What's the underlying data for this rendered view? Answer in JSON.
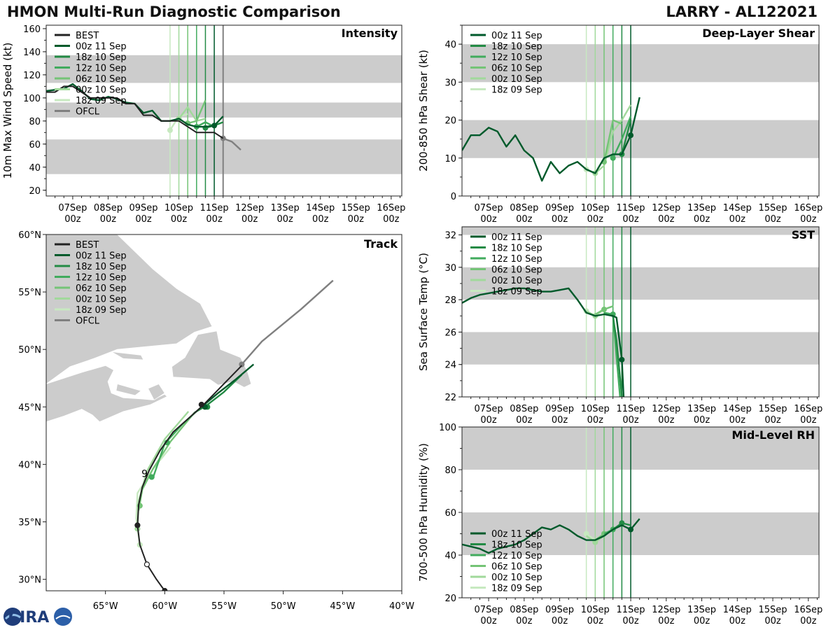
{
  "header": {
    "left_title": "HMON Multi-Run Diagnostic Comparison",
    "right_title": "LARRY - AL122021"
  },
  "logo": {
    "label": "CIRA"
  },
  "colors": {
    "BEST": "#222222",
    "OFCL": "#808080",
    "00z 11 Sep": "#005a2b",
    "18z 10 Sep": "#238b45",
    "12z 10 Sep": "#41ab5d",
    "06z 10 Sep": "#74c476",
    "00z 10 Sep": "#a1d99b",
    "18z 09 Sep": "#c7e9c0",
    "band": "#cccccc"
  },
  "time_axis": {
    "ticks": [
      {
        "t": 0,
        "label": "07Sep",
        "sub": "00z"
      },
      {
        "t": 1,
        "label": "08Sep",
        "sub": "00z"
      },
      {
        "t": 2,
        "label": "09Sep",
        "sub": "00z"
      },
      {
        "t": 3,
        "label": "10Sep",
        "sub": "00z"
      },
      {
        "t": 4,
        "label": "11Sep",
        "sub": "00z"
      },
      {
        "t": 5,
        "label": "12Sep",
        "sub": "00z"
      },
      {
        "t": 6,
        "label": "13Sep",
        "sub": "00z"
      },
      {
        "t": 7,
        "label": "14Sep",
        "sub": "00z"
      },
      {
        "t": 8,
        "label": "15Sep",
        "sub": "00z"
      },
      {
        "t": 9,
        "label": "16Sep",
        "sub": "00z"
      }
    ],
    "range": [
      -0.75,
      9.3
    ],
    "init_times": [
      {
        "name": "18z 09 Sep",
        "t": 2.75
      },
      {
        "name": "00z 10 Sep",
        "t": 3.0
      },
      {
        "name": "06z 10 Sep",
        "t": 3.25
      },
      {
        "name": "12z 10 Sep",
        "t": 3.5
      },
      {
        "name": "18z 10 Sep",
        "t": 3.75
      },
      {
        "name": "00z 11 Sep",
        "t": 4.0
      }
    ],
    "ofcl_time": 4.25
  },
  "chart_data": [
    {
      "id": "intensity",
      "type": "line",
      "title": "Intensity",
      "ylabel": "10m Max Wind Speed (kt)",
      "ylim": [
        15,
        163
      ],
      "yticks": [
        20,
        40,
        60,
        80,
        100,
        120,
        140,
        160
      ],
      "bands": [
        [
          34,
          64
        ],
        [
          83,
          96
        ],
        [
          113,
          137
        ]
      ],
      "legend": [
        "BEST",
        "00z 11 Sep",
        "18z 10 Sep",
        "12z 10 Sep",
        "06z 10 Sep",
        "00z 10 Sep",
        "18z 09 Sep",
        "OFCL"
      ],
      "series": [
        {
          "name": "BEST",
          "t": [
            -0.75,
            -0.5,
            -0.25,
            0,
            0.25,
            0.5,
            0.75,
            1.0,
            1.25,
            1.5,
            1.75,
            2.0,
            2.25,
            2.5,
            2.75,
            3.0,
            3.25,
            3.5,
            3.75,
            4.0,
            4.25
          ],
          "y": [
            105,
            105,
            110,
            110,
            105,
            100,
            100,
            100,
            100,
            95,
            95,
            85,
            85,
            80,
            80,
            80,
            75,
            70,
            70,
            70,
            65
          ]
        },
        {
          "name": "00z 11 Sep",
          "t": [
            -0.75,
            -0.5,
            -0.25,
            0,
            0.25,
            0.5,
            0.75,
            1.0,
            1.25,
            1.5,
            1.75,
            2.0,
            2.25,
            2.5,
            2.75,
            3.0,
            3.25,
            3.5,
            3.75,
            4.0,
            4.25
          ],
          "y": [
            106,
            107,
            108,
            112,
            106,
            99,
            98,
            101,
            99,
            96,
            95,
            87,
            89,
            80,
            80,
            82,
            77,
            75,
            75,
            76,
            84
          ],
          "markers": [
            4.0
          ]
        },
        {
          "name": "18z 10 Sep",
          "t": [
            3.75,
            4.0,
            4.25
          ],
          "y": [
            74,
            76,
            79
          ],
          "markers": [
            3.75
          ]
        },
        {
          "name": "12z 10 Sep",
          "t": [
            3.5,
            3.75,
            4.0
          ],
          "y": [
            75,
            79,
            75
          ],
          "markers": [
            3.5
          ]
        },
        {
          "name": "06z 10 Sep",
          "t": [
            3.25,
            3.5,
            3.75
          ],
          "y": [
            78,
            80,
            98
          ],
          "markers": [
            3.25
          ]
        },
        {
          "name": "00z 10 Sep",
          "t": [
            3.0,
            3.25,
            3.5,
            3.75
          ],
          "y": [
            82,
            92,
            80,
            82
          ],
          "markers": [
            3.0
          ]
        },
        {
          "name": "18z 09 Sep",
          "t": [
            2.75,
            3.0,
            3.25
          ],
          "y": [
            72,
            84,
            86
          ],
          "markers": [
            2.75
          ]
        },
        {
          "name": "OFCL",
          "t": [
            4.25,
            4.5,
            4.75
          ],
          "y": [
            65,
            62,
            55
          ],
          "markers": [
            4.25
          ]
        }
      ]
    },
    {
      "id": "shear",
      "type": "line",
      "title": "Deep-Layer Shear",
      "ylabel": "200-850 hPa Shear (kt)",
      "ylim": [
        0,
        45
      ],
      "yticks": [
        0,
        10,
        20,
        30,
        40
      ],
      "bands": [
        [
          10,
          20
        ],
        [
          30,
          40
        ]
      ],
      "legend": [
        "00z 11 Sep",
        "18z 10 Sep",
        "12z 10 Sep",
        "06z 10 Sep",
        "00z 10 Sep",
        "18z 09 Sep"
      ],
      "series": [
        {
          "name": "00z 11 Sep",
          "t": [
            -0.75,
            -0.5,
            -0.25,
            0,
            0.25,
            0.5,
            0.75,
            1.0,
            1.25,
            1.5,
            1.75,
            2.0,
            2.25,
            2.5,
            2.75,
            3.0,
            3.25,
            3.5,
            3.75,
            4.0,
            4.25
          ],
          "y": [
            12,
            16,
            16,
            18,
            17,
            13,
            16,
            12,
            10,
            4,
            9,
            6,
            8,
            9,
            7,
            6,
            10,
            11,
            11,
            16,
            26
          ],
          "markers": [
            4.0
          ]
        },
        {
          "name": "18z 10 Sep",
          "t": [
            3.75,
            4.0
          ],
          "y": [
            11,
            20
          ],
          "markers": [
            3.75
          ]
        },
        {
          "name": "12z 10 Sep",
          "t": [
            3.5,
            3.75,
            4.0
          ],
          "y": [
            10,
            15,
            21
          ],
          "markers": [
            3.5
          ]
        },
        {
          "name": "06z 10 Sep",
          "t": [
            3.25,
            3.5,
            3.75
          ],
          "y": [
            9,
            20,
            19
          ],
          "markers": [
            3.25
          ]
        },
        {
          "name": "00z 10 Sep",
          "t": [
            3.0,
            3.25,
            3.5,
            3.75,
            4.0
          ],
          "y": [
            6,
            8,
            17,
            20,
            24
          ],
          "markers": [
            3.0
          ]
        },
        {
          "name": "18z 09 Sep",
          "t": [
            2.75,
            3.0
          ],
          "y": [
            7,
            6
          ],
          "markers": [
            2.75
          ]
        }
      ]
    },
    {
      "id": "sst",
      "type": "line",
      "title": "SST",
      "ylabel": "Sea Surface Temp (°C)",
      "ylim": [
        22,
        32.5
      ],
      "yticks": [
        22,
        24,
        26,
        28,
        30,
        32
      ],
      "bands": [
        [
          24,
          26
        ],
        [
          28,
          30
        ],
        [
          32,
          32.5
        ]
      ],
      "legend": [
        "00z 11 Sep",
        "18z 10 Sep",
        "12z 10 Sep",
        "06z 10 Sep",
        "00z 10 Sep",
        "18z 09 Sep"
      ],
      "series": [
        {
          "name": "00z 11 Sep",
          "t": [
            -0.75,
            -0.5,
            -0.25,
            0,
            0.25,
            0.5,
            0.75,
            1.0,
            1.25,
            1.5,
            1.75,
            2.0,
            2.25,
            2.5,
            2.75,
            3.0,
            3.25,
            3.5,
            3.6,
            3.75,
            3.8
          ],
          "y": [
            27.8,
            28.1,
            28.3,
            28.4,
            28.5,
            28.6,
            28.7,
            28.7,
            28.6,
            28.5,
            28.5,
            28.6,
            28.7,
            28.0,
            27.2,
            27.0,
            27.1,
            27.0,
            26.9,
            24.3,
            22
          ],
          "markers": [
            3.75
          ]
        },
        {
          "name": "18z 10 Sep",
          "t": [
            3.5,
            3.6,
            3.75
          ],
          "y": [
            27.0,
            25.5,
            22.0
          ],
          "markers": []
        },
        {
          "name": "12z 10 Sep",
          "t": [
            3.25,
            3.5,
            3.6,
            3.7
          ],
          "y": [
            27.2,
            27.1,
            24.5,
            22.0
          ],
          "markers": [
            3.5
          ]
        },
        {
          "name": "06z 10 Sep",
          "t": [
            3.0,
            3.25,
            3.5
          ],
          "y": [
            27.1,
            27.4,
            27.6
          ],
          "markers": [
            3.25
          ]
        },
        {
          "name": "00z 10 Sep",
          "t": [
            2.75,
            3.0,
            3.25,
            3.5
          ],
          "y": [
            27.3,
            27.0,
            27.4,
            27.6
          ],
          "markers": [
            3.0
          ]
        },
        {
          "name": "18z 09 Sep",
          "t": [
            2.75,
            3.0,
            3.25
          ],
          "y": [
            27.3,
            27.0,
            27.5
          ],
          "markers": [
            2.75
          ]
        }
      ]
    },
    {
      "id": "rh",
      "type": "line",
      "title": "Mid-Level RH",
      "ylabel": "700-500 hPa Humidity (%)",
      "ylim": [
        20,
        100
      ],
      "yticks": [
        20,
        40,
        60,
        80,
        100
      ],
      "bands": [
        [
          40,
          60
        ],
        [
          80,
          100
        ]
      ],
      "legend": [
        "00z 11 Sep",
        "18z 10 Sep",
        "12z 10 Sep",
        "06z 10 Sep",
        "00z 10 Sep",
        "18z 09 Sep"
      ],
      "series": [
        {
          "name": "00z 11 Sep",
          "t": [
            -0.75,
            -0.5,
            -0.25,
            0,
            0.25,
            0.5,
            0.75,
            1.0,
            1.25,
            1.5,
            1.75,
            2.0,
            2.25,
            2.5,
            2.75,
            3.0,
            3.25,
            3.5,
            3.75,
            4.0,
            4.25
          ],
          "y": [
            45,
            44,
            43,
            41,
            43,
            44,
            45,
            47,
            50,
            53,
            52,
            54,
            52,
            49,
            47,
            47,
            49,
            52,
            54,
            52,
            57
          ],
          "markers": [
            4.0
          ]
        },
        {
          "name": "18z 10 Sep",
          "t": [
            3.5,
            3.75,
            4.0
          ],
          "y": [
            52,
            55,
            54
          ],
          "markers": [
            3.75
          ]
        },
        {
          "name": "12z 10 Sep",
          "t": [
            3.25,
            3.5,
            3.75
          ],
          "y": [
            50,
            52,
            55
          ],
          "markers": [
            3.5
          ]
        },
        {
          "name": "06z 10 Sep",
          "t": [
            3.0,
            3.25,
            3.5
          ],
          "y": [
            47,
            50,
            52
          ],
          "markers": [
            3.25
          ]
        },
        {
          "name": "00z 10 Sep",
          "t": [
            2.75,
            3.0,
            3.25
          ],
          "y": [
            49,
            46,
            49
          ],
          "markers": [
            3.0
          ]
        },
        {
          "name": "18z 09 Sep",
          "t": [
            2.75,
            3.0
          ],
          "y": [
            50,
            47
          ],
          "markers": [
            2.75
          ]
        }
      ]
    },
    {
      "id": "track",
      "type": "map",
      "title": "Track",
      "lon_range": [
        -70,
        -40
      ],
      "lat_range": [
        29,
        60
      ],
      "xticks": [
        {
          "v": -65,
          "label": "65°W"
        },
        {
          "v": -60,
          "label": "60°W"
        },
        {
          "v": -55,
          "label": "55°W"
        },
        {
          "v": -50,
          "label": "50°W"
        },
        {
          "v": -45,
          "label": "45°W"
        },
        {
          "v": -40,
          "label": "40°W"
        }
      ],
      "yticks": [
        {
          "v": 30,
          "label": "30°N"
        },
        {
          "v": 35,
          "label": "35°N"
        },
        {
          "v": 40,
          "label": "40°N"
        },
        {
          "v": 45,
          "label": "45°N"
        },
        {
          "v": 50,
          "label": "50°N"
        },
        {
          "v": 55,
          "label": "55°N"
        },
        {
          "v": 60,
          "label": "60°N"
        }
      ],
      "legend": [
        "BEST",
        "00z 11 Sep",
        "18z 10 Sep",
        "12z 10 Sep",
        "06z 10 Sep",
        "00z 10 Sep",
        "18z 09 Sep",
        "OFCL"
      ],
      "storm_symbol": "9",
      "series": [
        {
          "name": "BEST",
          "lon": [
            -60.0,
            -60.7,
            -61.5,
            -62.1,
            -62.3,
            -62.2,
            -61.9,
            -61.3,
            -60.4,
            -59.3,
            -58.0,
            -56.8,
            -55.2,
            -53.5
          ],
          "lat": [
            29.0,
            30.0,
            31.3,
            33.0,
            34.7,
            36.5,
            38.0,
            39.5,
            41.2,
            42.8,
            44.0,
            45.1,
            46.8,
            48.6
          ],
          "points": [
            {
              "lon": -60.0,
              "lat": 29.0,
              "filled": true
            },
            {
              "lon": -61.5,
              "lat": 31.3,
              "filled": false
            },
            {
              "lon": -62.3,
              "lat": 34.7,
              "filled": true
            },
            {
              "lon": -56.9,
              "lat": 45.2,
              "filled": true
            }
          ]
        },
        {
          "name": "00z 11 Sep",
          "lon": [
            -56.9,
            -55.5,
            -54.0,
            -52.5
          ],
          "lat": [
            45.0,
            46.2,
            47.4,
            48.7
          ],
          "points": [
            {
              "lon": -56.6,
              "lat": 45.0,
              "filled": true
            }
          ]
        },
        {
          "name": "18z 10 Sep",
          "lon": [
            -57.5,
            -56.5,
            -55.0,
            -53.5
          ],
          "lat": [
            44.5,
            45.1,
            46.3,
            47.8
          ],
          "points": [
            {
              "lon": -56.4,
              "lat": 45.0,
              "filled": true
            }
          ]
        },
        {
          "name": "12z 10 Sep",
          "lon": [
            -61.0,
            -60.0,
            -58.5,
            -57.0
          ],
          "lat": [
            38.8,
            41.8,
            43.5,
            44.9
          ],
          "points": [
            {
              "lon": -61.1,
              "lat": 38.9,
              "filled": true
            },
            {
              "lon": -59.8,
              "lat": 41.9,
              "filled": true
            }
          ]
        },
        {
          "name": "06z 10 Sep",
          "lon": [
            -62.2,
            -61.9,
            -61.0,
            -59.5,
            -57.5
          ],
          "lat": [
            36.0,
            37.8,
            39.6,
            42.0,
            44.5
          ],
          "points": [
            {
              "lon": -62.1,
              "lat": 36.4,
              "filled": true
            }
          ]
        },
        {
          "name": "00z 10 Sep",
          "lon": [
            -62.3,
            -62.2,
            -61.5,
            -60.0,
            -58.0
          ],
          "lat": [
            34.3,
            36.8,
            39.4,
            42.2,
            44.6
          ],
          "points": [
            {
              "lon": -62.3,
              "lat": 34.4,
              "filled": true
            }
          ]
        },
        {
          "name": "18z 09 Sep",
          "lon": [
            -62.1,
            -62.4,
            -62.3,
            -61.0,
            -59.5
          ],
          "lat": [
            32.9,
            35.3,
            37.5,
            39.6,
            41.5
          ],
          "points": [
            {
              "lon": -62.1,
              "lat": 33.0,
              "filled": true
            }
          ]
        },
        {
          "name": "OFCL",
          "lon": [
            -53.5,
            -51.8,
            -48.5,
            -45.8
          ],
          "lat": [
            48.7,
            50.7,
            53.5,
            56.0
          ],
          "points": [
            {
              "lon": -53.5,
              "lat": 48.7,
              "filled": true
            }
          ]
        }
      ]
    }
  ]
}
